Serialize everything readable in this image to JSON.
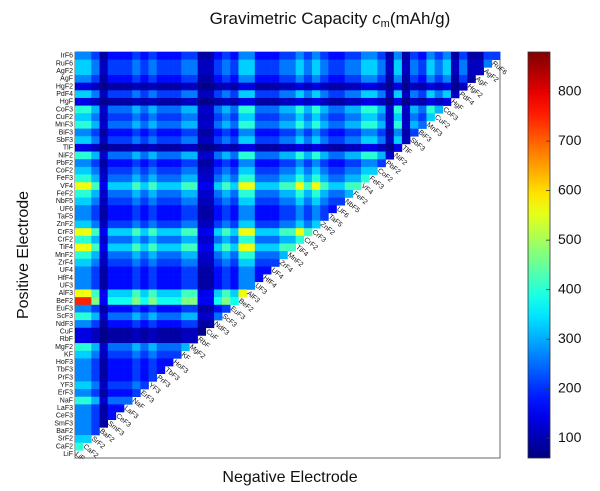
{
  "chart_data": {
    "type": "heatmap",
    "title": "Gravimetric Capacity",
    "title_symbol": "c",
    "title_subscript": "m",
    "title_unit": "(mAh/g)",
    "x_label": "Negative Electrode",
    "y_label": "Positive Electrode",
    "colormap": "jet",
    "zlim": [
      60,
      880
    ],
    "zticks": [
      100,
      200,
      300,
      400,
      500,
      600,
      700,
      800
    ],
    "rows": [
      "IrF6",
      "RuF6",
      "AgF2",
      "AgF",
      "HgF2",
      "PdF4",
      "HgF",
      "CoF3",
      "CuF2",
      "MnF3",
      "BiF3",
      "SbF3",
      "TlF",
      "NiF2",
      "PbF2",
      "CoF2",
      "FeF3",
      "VF4",
      "FeF2",
      "NbF5",
      "UF6",
      "TaF5",
      "ZnF2",
      "CrF3",
      "CrF2",
      "TiF4",
      "MnF2",
      "ZrF4",
      "UF4",
      "HfF4",
      "UF3",
      "AlF3",
      "BeF2",
      "EuF3",
      "ScF3",
      "NdF3",
      "CuF",
      "RbF",
      "MgF2",
      "KF",
      "HoF3",
      "TbF3",
      "PrF3",
      "YF3",
      "ErF3",
      "NaF",
      "LaF3",
      "CeF3",
      "SmF3",
      "BaF2",
      "SrF2",
      "CaF2",
      "LiF"
    ],
    "matrix": [
      [
        270,
        270,
        210,
        90,
        170,
        170,
        170,
        210,
        170,
        210,
        170,
        170,
        170,
        210,
        210,
        90,
        90,
        170,
        210,
        170,
        270,
        270,
        170,
        170,
        170,
        210,
        210,
        270,
        210,
        270,
        210,
        170,
        170,
        210,
        210,
        270,
        270,
        210,
        90,
        270,
        90,
        210,
        170,
        270,
        210,
        270,
        90,
        210,
        90,
        90,
        210,
        210
      ],
      [
        330,
        330,
        260,
        110,
        210,
        210,
        210,
        260,
        210,
        260,
        210,
        210,
        210,
        260,
        260,
        110,
        110,
        210,
        260,
        210,
        330,
        330,
        210,
        210,
        210,
        260,
        260,
        330,
        260,
        330,
        260,
        210,
        210,
        260,
        260,
        330,
        330,
        260,
        110,
        330,
        110,
        260,
        210,
        330,
        260,
        330,
        110,
        260,
        110,
        110,
        260
      ],
      [
        330,
        330,
        260,
        110,
        210,
        210,
        210,
        260,
        210,
        260,
        210,
        210,
        210,
        260,
        260,
        110,
        110,
        210,
        260,
        210,
        330,
        330,
        210,
        210,
        210,
        260,
        260,
        330,
        260,
        330,
        260,
        210,
        210,
        260,
        260,
        330,
        330,
        260,
        110,
        330,
        110,
        260,
        210,
        330,
        260,
        330,
        110,
        260,
        110,
        110
      ],
      [
        270,
        270,
        210,
        90,
        170,
        170,
        170,
        210,
        170,
        210,
        170,
        170,
        170,
        210,
        210,
        90,
        90,
        170,
        210,
        170,
        270,
        270,
        170,
        170,
        170,
        210,
        210,
        270,
        210,
        270,
        210,
        170,
        170,
        210,
        210,
        270,
        270,
        210,
        90,
        270,
        90,
        210,
        170,
        270,
        210,
        270,
        90,
        210,
        90
      ],
      [
        140,
        140,
        110,
        70,
        90,
        90,
        90,
        110,
        90,
        110,
        90,
        90,
        90,
        110,
        110,
        70,
        70,
        90,
        110,
        90,
        140,
        140,
        90,
        90,
        90,
        110,
        110,
        140,
        110,
        140,
        110,
        90,
        90,
        110,
        110,
        140,
        140,
        110,
        70,
        140,
        70,
        110,
        90,
        140,
        110,
        140,
        70,
        110
      ],
      [
        330,
        330,
        260,
        110,
        210,
        210,
        210,
        260,
        210,
        260,
        210,
        210,
        210,
        260,
        260,
        110,
        110,
        210,
        260,
        210,
        330,
        330,
        210,
        210,
        210,
        260,
        260,
        330,
        260,
        330,
        260,
        210,
        210,
        260,
        260,
        330,
        330,
        260,
        110,
        330,
        110,
        260,
        210,
        330,
        260,
        330,
        110
      ],
      [
        140,
        140,
        110,
        70,
        90,
        90,
        90,
        110,
        90,
        110,
        90,
        90,
        90,
        110,
        110,
        70,
        70,
        90,
        110,
        90,
        140,
        140,
        90,
        90,
        90,
        110,
        110,
        140,
        110,
        140,
        110,
        90,
        90,
        110,
        110,
        140,
        140,
        110,
        70,
        140,
        70,
        110,
        90,
        140,
        110,
        140
      ],
      [
        400,
        400,
        310,
        120,
        250,
        250,
        250,
        310,
        250,
        310,
        250,
        250,
        250,
        310,
        310,
        120,
        120,
        250,
        310,
        250,
        400,
        400,
        250,
        250,
        250,
        310,
        310,
        400,
        310,
        400,
        310,
        250,
        250,
        310,
        310,
        400,
        400,
        310,
        120,
        400,
        120,
        310,
        250,
        400,
        310
      ],
      [
        330,
        330,
        260,
        110,
        210,
        210,
        210,
        260,
        210,
        260,
        210,
        210,
        210,
        260,
        260,
        110,
        110,
        210,
        260,
        210,
        330,
        330,
        210,
        210,
        210,
        260,
        260,
        330,
        260,
        330,
        260,
        210,
        210,
        260,
        260,
        330,
        330,
        260,
        110,
        330,
        110,
        260,
        210,
        330
      ],
      [
        400,
        400,
        310,
        120,
        250,
        250,
        250,
        310,
        250,
        310,
        250,
        250,
        250,
        310,
        310,
        120,
        120,
        250,
        310,
        250,
        400,
        400,
        250,
        250,
        250,
        310,
        310,
        400,
        310,
        400,
        310,
        250,
        250,
        310,
        310,
        400,
        400,
        310,
        120,
        400,
        120,
        310,
        250
      ],
      [
        270,
        270,
        210,
        90,
        170,
        170,
        170,
        210,
        170,
        210,
        170,
        170,
        170,
        210,
        210,
        90,
        90,
        170,
        210,
        170,
        270,
        270,
        170,
        170,
        170,
        210,
        210,
        270,
        210,
        270,
        210,
        170,
        170,
        210,
        210,
        270,
        270,
        210,
        90,
        270,
        90,
        210
      ],
      [
        330,
        330,
        260,
        110,
        210,
        210,
        210,
        260,
        210,
        260,
        210,
        210,
        210,
        260,
        260,
        110,
        110,
        210,
        260,
        210,
        330,
        330,
        210,
        210,
        210,
        260,
        260,
        330,
        260,
        330,
        260,
        210,
        210,
        260,
        260,
        330,
        330,
        260,
        110,
        330,
        110
      ],
      [
        140,
        140,
        110,
        70,
        90,
        90,
        90,
        110,
        90,
        110,
        90,
        90,
        90,
        110,
        110,
        70,
        70,
        90,
        110,
        90,
        140,
        140,
        90,
        90,
        90,
        110,
        110,
        140,
        110,
        140,
        110,
        90,
        90,
        110,
        110,
        140,
        140,
        110,
        70,
        140
      ],
      [
        400,
        400,
        310,
        120,
        250,
        250,
        250,
        310,
        250,
        310,
        250,
        250,
        250,
        310,
        310,
        120,
        120,
        250,
        310,
        250,
        400,
        400,
        250,
        250,
        250,
        310,
        310,
        400,
        310,
        400,
        310,
        250,
        250,
        310,
        310,
        400,
        400,
        310,
        120
      ],
      [
        270,
        270,
        210,
        90,
        170,
        170,
        170,
        210,
        170,
        210,
        170,
        170,
        170,
        210,
        210,
        90,
        90,
        170,
        210,
        170,
        270,
        270,
        170,
        170,
        170,
        210,
        210,
        270,
        210,
        270,
        210,
        170,
        170,
        210,
        210,
        270,
        270,
        210
      ],
      [
        330,
        330,
        260,
        110,
        210,
        210,
        210,
        260,
        210,
        260,
        210,
        210,
        210,
        260,
        260,
        110,
        110,
        210,
        260,
        210,
        330,
        330,
        210,
        210,
        210,
        260,
        260,
        330,
        260,
        330,
        260,
        210,
        210,
        260,
        260,
        330,
        330
      ],
      [
        400,
        400,
        310,
        120,
        250,
        250,
        250,
        310,
        250,
        310,
        250,
        250,
        250,
        310,
        310,
        120,
        120,
        250,
        310,
        250,
        400,
        400,
        250,
        250,
        250,
        310,
        310,
        400,
        310,
        400,
        310,
        250,
        250,
        310,
        310,
        400
      ],
      [
        560,
        560,
        420,
        150,
        330,
        330,
        330,
        420,
        330,
        420,
        330,
        330,
        330,
        420,
        420,
        150,
        150,
        330,
        420,
        330,
        560,
        560,
        330,
        330,
        330,
        420,
        420,
        560,
        420,
        560,
        420,
        330,
        330,
        420,
        420
      ],
      [
        400,
        400,
        310,
        120,
        250,
        250,
        250,
        310,
        250,
        310,
        250,
        250,
        250,
        310,
        310,
        120,
        120,
        250,
        310,
        250,
        400,
        400,
        250,
        250,
        250,
        310,
        310,
        400,
        310,
        400,
        310,
        250,
        250,
        310
      ],
      [
        330,
        330,
        260,
        110,
        210,
        210,
        210,
        260,
        210,
        260,
        210,
        210,
        210,
        260,
        260,
        110,
        110,
        210,
        260,
        210,
        330,
        330,
        210,
        210,
        210,
        260,
        260,
        330,
        260,
        330,
        260,
        210,
        210
      ],
      [
        270,
        270,
        210,
        90,
        170,
        170,
        170,
        210,
        170,
        210,
        170,
        170,
        170,
        210,
        210,
        90,
        90,
        170,
        210,
        170,
        270,
        270,
        170,
        170,
        170,
        210,
        210,
        270,
        210,
        270,
        210,
        170
      ],
      [
        270,
        270,
        210,
        90,
        170,
        170,
        170,
        210,
        170,
        210,
        170,
        170,
        170,
        210,
        210,
        90,
        90,
        170,
        210,
        170,
        270,
        270,
        170,
        170,
        170,
        210,
        210,
        270,
        210,
        270,
        210
      ],
      [
        330,
        330,
        260,
        110,
        210,
        210,
        210,
        260,
        210,
        260,
        210,
        210,
        210,
        260,
        260,
        110,
        110,
        210,
        260,
        210,
        330,
        330,
        210,
        210,
        210,
        260,
        260,
        330,
        260,
        330
      ],
      [
        560,
        560,
        420,
        150,
        330,
        330,
        330,
        420,
        330,
        420,
        330,
        330,
        330,
        420,
        420,
        150,
        150,
        330,
        420,
        330,
        560,
        560,
        330,
        330,
        330,
        420,
        420,
        560,
        420
      ],
      [
        400,
        400,
        310,
        120,
        250,
        250,
        250,
        310,
        250,
        310,
        250,
        250,
        250,
        310,
        310,
        120,
        120,
        250,
        310,
        250,
        400,
        400,
        250,
        250,
        250,
        310,
        310,
        400
      ],
      [
        560,
        560,
        420,
        150,
        330,
        330,
        330,
        420,
        330,
        420,
        330,
        330,
        330,
        420,
        420,
        150,
        150,
        330,
        420,
        330,
        560,
        560,
        330,
        330,
        330,
        420,
        420
      ],
      [
        400,
        400,
        310,
        120,
        250,
        250,
        250,
        310,
        250,
        310,
        250,
        250,
        250,
        310,
        310,
        120,
        120,
        250,
        310,
        250,
        400,
        400,
        250,
        250,
        250,
        310
      ],
      [
        330,
        330,
        260,
        110,
        210,
        210,
        210,
        260,
        210,
        260,
        210,
        210,
        210,
        260,
        260,
        110,
        110,
        210,
        260,
        210,
        330,
        330,
        210,
        210,
        210
      ],
      [
        270,
        270,
        210,
        90,
        170,
        170,
        170,
        210,
        170,
        210,
        170,
        170,
        170,
        210,
        210,
        90,
        90,
        170,
        210,
        170,
        270,
        270,
        170,
        170
      ],
      [
        270,
        270,
        210,
        90,
        170,
        170,
        170,
        210,
        170,
        210,
        170,
        170,
        170,
        210,
        210,
        90,
        90,
        170,
        210,
        170,
        270,
        270,
        170
      ],
      [
        270,
        270,
        210,
        90,
        170,
        170,
        170,
        210,
        170,
        210,
        170,
        170,
        170,
        210,
        210,
        90,
        90,
        170,
        210,
        170,
        270,
        270
      ],
      [
        560,
        560,
        420,
        150,
        330,
        330,
        330,
        420,
        330,
        420,
        330,
        330,
        330,
        420,
        420,
        150,
        150,
        330,
        420,
        330,
        560
      ],
      [
        750,
        750,
        470,
        160,
        380,
        380,
        380,
        470,
        380,
        470,
        380,
        380,
        380,
        470,
        470,
        160,
        160,
        380,
        470,
        380
      ],
      [
        270,
        270,
        210,
        90,
        170,
        170,
        170,
        210,
        170,
        210,
        170,
        170,
        170,
        210,
        210,
        90,
        90,
        170,
        210
      ],
      [
        400,
        400,
        310,
        120,
        250,
        250,
        250,
        310,
        250,
        310,
        250,
        250,
        250,
        310,
        310,
        120,
        120,
        250
      ],
      [
        270,
        270,
        210,
        90,
        170,
        170,
        170,
        210,
        170,
        210,
        170,
        170,
        170,
        210,
        210,
        90,
        90
      ],
      [
        140,
        140,
        110,
        70,
        90,
        90,
        90,
        110,
        90,
        110,
        90,
        90,
        90,
        110,
        110,
        70
      ],
      [
        140,
        140,
        110,
        70,
        90,
        90,
        90,
        110,
        90,
        110,
        90,
        90,
        90,
        110,
        110
      ],
      [
        400,
        400,
        310,
        120,
        250,
        250,
        250,
        310,
        250,
        310,
        250,
        250,
        250,
        310
      ],
      [
        330,
        330,
        260,
        110,
        210,
        210,
        210,
        260,
        210,
        260,
        210,
        210,
        210
      ],
      [
        270,
        270,
        210,
        90,
        170,
        170,
        170,
        210,
        170,
        210,
        170,
        170
      ],
      [
        270,
        270,
        210,
        90,
        170,
        170,
        170,
        210,
        170,
        210,
        170
      ],
      [
        270,
        270,
        210,
        90,
        170,
        170,
        170,
        210,
        170,
        210
      ],
      [
        330,
        330,
        260,
        110,
        210,
        210,
        210,
        260,
        210
      ],
      [
        270,
        270,
        210,
        90,
        170,
        170,
        170,
        210
      ],
      [
        400,
        400,
        310,
        120,
        250,
        250,
        250
      ],
      [
        270,
        270,
        210,
        90,
        170,
        170
      ],
      [
        270,
        270,
        210,
        90,
        170
      ],
      [
        270,
        270,
        210,
        90
      ],
      [
        270,
        270,
        210
      ],
      [
        330,
        330
      ],
      [
        400
      ]
    ]
  }
}
